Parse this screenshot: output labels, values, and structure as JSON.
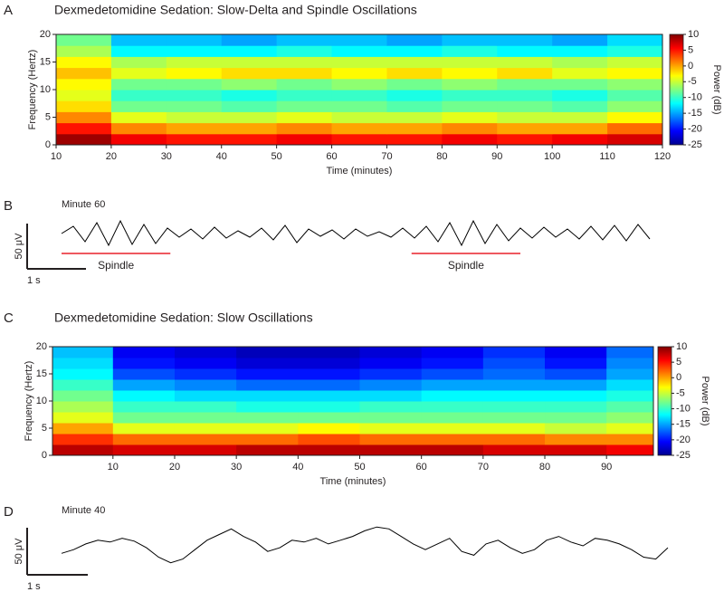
{
  "chart_data": [
    {
      "type": "heatmap",
      "label": "A",
      "title": "Dexmedetomidine Sedation: Slow-Delta and Spindle Oscillations",
      "xlabel": "Time (minutes)",
      "ylabel": "Frequency (Hertz)",
      "xlim": [
        10,
        120
      ],
      "xticks": [
        10,
        20,
        30,
        40,
        50,
        60,
        70,
        80,
        90,
        100,
        110,
        120
      ],
      "ylim": [
        0,
        20
      ],
      "yticks": [
        0,
        5,
        10,
        15,
        20
      ],
      "x": [
        15,
        25,
        35,
        45,
        55,
        65,
        75,
        85,
        95,
        105,
        115
      ],
      "y": [
        1,
        3,
        5,
        7,
        9,
        11,
        13,
        15,
        17,
        19
      ],
      "z": [
        [
          9,
          6,
          5,
          5,
          6,
          5,
          5,
          6,
          5,
          6,
          7
        ],
        [
          5,
          1,
          0,
          0,
          1,
          0,
          0,
          1,
          0,
          0,
          2
        ],
        [
          1,
          -4,
          -5,
          -5,
          -4,
          -5,
          -5,
          -4,
          -5,
          -5,
          -3
        ],
        [
          -2,
          -8,
          -8,
          -9,
          -8,
          -8,
          -9,
          -8,
          -8,
          -9,
          -7
        ],
        [
          -4,
          -10,
          -10,
          -11,
          -10,
          -10,
          -11,
          -10,
          -10,
          -11,
          -9
        ],
        [
          -3,
          -8,
          -8,
          -7,
          -8,
          -7,
          -8,
          -7,
          -8,
          -8,
          -7
        ],
        [
          -1,
          -4,
          -3,
          -2,
          -2,
          -3,
          -2,
          -3,
          -2,
          -4,
          -3
        ],
        [
          -3,
          -6,
          -5,
          -5,
          -5,
          -5,
          -5,
          -5,
          -5,
          -6,
          -5
        ],
        [
          -6,
          -12,
          -12,
          -12,
          -11,
          -12,
          -12,
          -11,
          -12,
          -12,
          -11
        ],
        [
          -8,
          -14,
          -14,
          -15,
          -14,
          -14,
          -15,
          -14,
          -14,
          -15,
          -13
        ]
      ],
      "colormap": "jet",
      "clim": [
        -25,
        10
      ],
      "cticks": [
        10,
        5,
        0,
        -5,
        -10,
        -15,
        -20,
        -25
      ],
      "clabel": "Power (dB)"
    },
    {
      "type": "trace",
      "label": "B",
      "subtitle": "Minute 60",
      "x": [
        0,
        0.2,
        0.4,
        0.6,
        0.8,
        1,
        1.2,
        1.4,
        1.6,
        1.8,
        2,
        2.2,
        2.4,
        2.6,
        2.8,
        3,
        3.2,
        3.4,
        3.6,
        3.8,
        4,
        4.2,
        4.4,
        4.6,
        4.8,
        5,
        5.2,
        5.4,
        5.6,
        5.8,
        6,
        6.2,
        6.4,
        6.6,
        6.8,
        7,
        7.2,
        7.4,
        7.6,
        7.8,
        8,
        8.2,
        8.4,
        8.6,
        8.8,
        9,
        9.2,
        9.4,
        9.6,
        9.8,
        10
      ],
      "values": [
        0,
        8,
        -9,
        12,
        -13,
        14,
        -12,
        10,
        -11,
        6,
        -4,
        5,
        -6,
        7,
        -5,
        3,
        -4,
        6,
        -7,
        9,
        -10,
        5,
        -3,
        4,
        -6,
        5,
        -3,
        2,
        -4,
        6,
        -5,
        8,
        -9,
        12,
        -13,
        14,
        -11,
        10,
        -8,
        6,
        -5,
        7,
        -4,
        5,
        -6,
        8,
        -7,
        9,
        -8,
        10,
        -6
      ],
      "color": "#000000",
      "scale_bar": {
        "y": 50,
        "y_label": "50 μV",
        "x": 1,
        "x_label": "1 s"
      },
      "annotations": [
        {
          "label": "Spindle",
          "x": [
            0,
            1.85
          ],
          "color": "#e8212a"
        },
        {
          "label": "Spindle",
          "x": [
            5.95,
            7.8
          ],
          "color": "#e8212a"
        }
      ]
    },
    {
      "type": "heatmap",
      "label": "C",
      "title": "Dexmedetomidine Sedation: Slow Oscillations",
      "xlabel": "Time (minutes)",
      "ylabel": "Frequency (Hertz)",
      "xlim": [
        0.2,
        97.6
      ],
      "xticks": [
        10,
        20,
        30,
        40,
        50,
        60,
        70,
        80,
        90
      ],
      "ylim": [
        0,
        20
      ],
      "yticks": [
        0,
        5,
        10,
        15,
        20
      ],
      "x": [
        5,
        15,
        25,
        35,
        45,
        55,
        65,
        75,
        85,
        95
      ],
      "y": [
        1,
        3,
        5,
        7,
        9,
        11,
        13,
        15,
        17,
        19
      ],
      "z": [
        [
          8,
          7,
          7,
          8,
          8,
          8,
          8,
          7,
          7,
          6
        ],
        [
          4,
          2,
          2,
          2,
          3,
          2,
          2,
          2,
          1,
          1
        ],
        [
          0,
          -4,
          -4,
          -4,
          -3,
          -4,
          -4,
          -4,
          -5,
          -4
        ],
        [
          -4,
          -8,
          -8,
          -8,
          -8,
          -8,
          -8,
          -8,
          -8,
          -7
        ],
        [
          -6,
          -10,
          -10,
          -11,
          -11,
          -10,
          -10,
          -10,
          -10,
          -9
        ],
        [
          -8,
          -12,
          -13,
          -13,
          -13,
          -13,
          -12,
          -12,
          -12,
          -11
        ],
        [
          -10,
          -15,
          -16,
          -17,
          -17,
          -16,
          -15,
          -15,
          -15,
          -13
        ],
        [
          -12,
          -18,
          -19,
          -20,
          -20,
          -19,
          -18,
          -17,
          -18,
          -15
        ],
        [
          -13,
          -20,
          -21,
          -22,
          -22,
          -21,
          -20,
          -18,
          -20,
          -16
        ],
        [
          -14,
          -21,
          -22,
          -23,
          -23,
          -22,
          -21,
          -19,
          -21,
          -17
        ]
      ],
      "colormap": "jet",
      "clim": [
        -25,
        10
      ],
      "cticks": [
        10,
        5,
        0,
        -5,
        -10,
        -15,
        -20,
        -25
      ],
      "clabel": "Power (dB)"
    },
    {
      "type": "trace",
      "label": "D",
      "subtitle": "Minute 40",
      "x": [
        0,
        0.2,
        0.4,
        0.6,
        0.8,
        1,
        1.2,
        1.4,
        1.6,
        1.8,
        2,
        2.2,
        2.4,
        2.6,
        2.8,
        3,
        3.2,
        3.4,
        3.6,
        3.8,
        4,
        4.2,
        4.4,
        4.6,
        4.8,
        5,
        5.2,
        5.4,
        5.6,
        5.8,
        6,
        6.2,
        6.4,
        6.6,
        6.8,
        7,
        7.2,
        7.4,
        7.6,
        7.8,
        8,
        8.2,
        8.4,
        8.6,
        8.8,
        9,
        9.2,
        9.4,
        9.6,
        9.8,
        10
      ],
      "values": [
        -8,
        -4,
        2,
        6,
        4,
        8,
        5,
        -2,
        -12,
        -18,
        -14,
        -4,
        6,
        12,
        18,
        10,
        4,
        -6,
        -2,
        6,
        4,
        8,
        2,
        6,
        10,
        16,
        20,
        18,
        10,
        2,
        -4,
        2,
        8,
        -6,
        -10,
        2,
        6,
        -2,
        -8,
        -4,
        6,
        10,
        4,
        0,
        8,
        6,
        2,
        -4,
        -12,
        -14,
        -2
      ],
      "color": "#000000",
      "scale_bar": {
        "y": 50,
        "y_label": "50 μV",
        "x": 1,
        "x_label": "1 s"
      }
    }
  ]
}
